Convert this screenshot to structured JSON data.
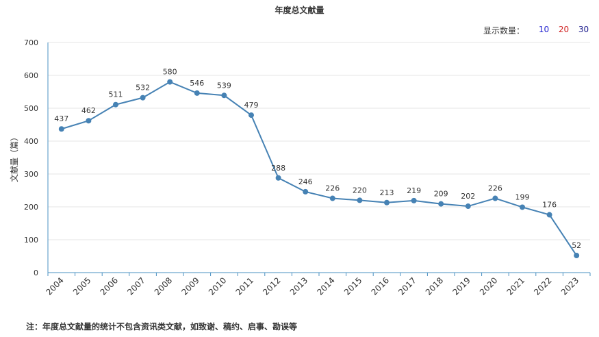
{
  "title": "年度总文献量",
  "display_count": {
    "label": "显示数量：",
    "options": [
      {
        "value": "10",
        "color": "#1f1fd0"
      },
      {
        "value": "20",
        "color": "#d01f1f"
      },
      {
        "value": "30",
        "color": "#1a1a8c"
      }
    ]
  },
  "note": "注：年度总文献量的统计不包含资讯类文献，如致谢、稿约、启事、勘误等",
  "chart_data": {
    "type": "line",
    "title": "年度总文献量",
    "xlabel": "",
    "ylabel": "文献量（篇）",
    "ylim": [
      0,
      700
    ],
    "yticks": [
      0,
      100,
      200,
      300,
      400,
      500,
      600,
      700
    ],
    "grid": true,
    "line_color": "#4682b4",
    "categories": [
      "2004",
      "2005",
      "2006",
      "2007",
      "2008",
      "2009",
      "2010",
      "2011",
      "2012",
      "2013",
      "2014",
      "2015",
      "2016",
      "2017",
      "2018",
      "2019",
      "2020",
      "2021",
      "2022",
      "2023"
    ],
    "series": [
      {
        "values": [
          437,
          462,
          511,
          532,
          580,
          546,
          539,
          479,
          288,
          246,
          226,
          220,
          213,
          219,
          209,
          202,
          226,
          199,
          176,
          52
        ]
      }
    ]
  }
}
